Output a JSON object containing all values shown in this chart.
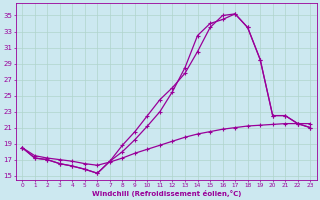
{
  "xlabel": "Windchill (Refroidissement éolien,°C)",
  "bg_color": "#cce8f0",
  "grid_color": "#b0d4cc",
  "line_color": "#990099",
  "xlim": [
    -0.5,
    23.5
  ],
  "ylim": [
    14.5,
    36.5
  ],
  "xticks": [
    0,
    1,
    2,
    3,
    4,
    5,
    6,
    7,
    8,
    9,
    10,
    11,
    12,
    13,
    14,
    15,
    16,
    17,
    18,
    19,
    20,
    21,
    22,
    23
  ],
  "yticks": [
    15,
    17,
    19,
    21,
    23,
    25,
    27,
    29,
    31,
    33,
    35
  ],
  "line1_x": [
    0,
    1,
    2,
    3,
    4,
    5,
    6,
    7,
    8,
    9,
    10,
    11,
    12,
    13,
    14,
    15,
    16,
    17,
    18,
    19,
    20,
    21,
    22,
    23
  ],
  "line1_y": [
    18.5,
    17.2,
    17.0,
    16.5,
    16.2,
    15.8,
    15.3,
    16.8,
    18.8,
    20.5,
    22.5,
    24.5,
    26.0,
    27.8,
    30.5,
    33.5,
    35.0,
    35.2,
    33.5,
    29.5,
    22.5,
    22.5,
    21.5,
    21.0
  ],
  "line2_x": [
    0,
    1,
    2,
    3,
    4,
    5,
    6,
    7,
    8,
    9,
    10,
    11,
    12,
    13,
    14,
    15,
    16,
    17,
    18,
    19,
    20,
    21,
    22,
    23
  ],
  "line2_y": [
    18.5,
    17.2,
    17.0,
    16.5,
    16.2,
    15.8,
    15.3,
    16.8,
    18.0,
    19.5,
    21.2,
    23.0,
    25.5,
    28.5,
    32.5,
    34.0,
    34.5,
    35.2,
    33.5,
    29.5,
    22.5,
    22.5,
    21.5,
    21.0
  ],
  "line3_x": [
    0,
    1,
    2,
    3,
    4,
    5,
    6,
    7,
    8,
    9,
    10,
    11,
    12,
    13,
    14,
    15,
    16,
    17,
    18,
    19,
    20,
    21,
    22,
    23
  ],
  "line3_y": [
    18.5,
    17.5,
    17.2,
    17.0,
    16.8,
    16.5,
    16.3,
    16.7,
    17.2,
    17.8,
    18.3,
    18.8,
    19.3,
    19.8,
    20.2,
    20.5,
    20.8,
    21.0,
    21.2,
    21.3,
    21.4,
    21.5,
    21.5,
    21.5
  ],
  "marker": "+",
  "markersize": 3,
  "linewidth": 0.9
}
